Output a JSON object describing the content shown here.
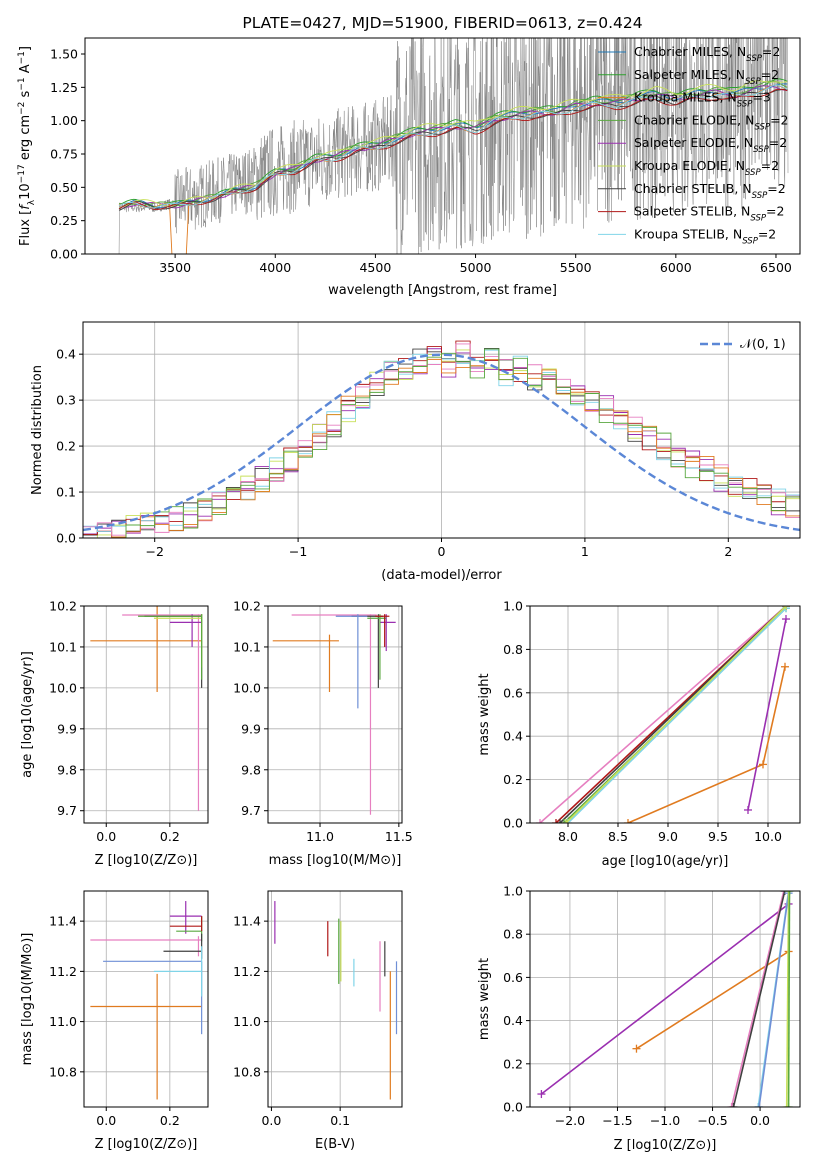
{
  "colors": {
    "chabrier_miles": "#1f77b4",
    "salpeter_miles": "#2ca02c",
    "kroupa_miles": "#e07b20",
    "chabrier_elodie": "#5aa840",
    "salpeter_elodie": "#9a2fb0",
    "kroupa_elodie": "#c8e05a",
    "chabrier_stelib": "#404040",
    "salpeter_stelib": "#b01818",
    "kroupa_stelib": "#80d4e8",
    "pink": "#e67fc0",
    "blue": "#6f8fd6",
    "normal": "#5b87d6",
    "spectrum": "#808080"
  },
  "chart_data": [
    {
      "id": "spectrum",
      "type": "line",
      "title": "PLATE=0427, MJD=51900, FIBERID=0613, z=0.424",
      "xlabel": "wavelength [Angstrom, rest frame]",
      "ylabel": "Flux [f_λ 10^-17 erg cm^-2 s^-1 A^-1]",
      "xlim": [
        3050,
        6620
      ],
      "ylim": [
        0,
        1.62
      ],
      "xticks": [
        "3500",
        "4000",
        "4500",
        "5000",
        "5500",
        "6000",
        "6500"
      ],
      "xtick_values": [
        3500,
        4000,
        4500,
        5000,
        5500,
        6000,
        6500
      ],
      "yticks": [
        "0.00",
        "0.25",
        "0.50",
        "0.75",
        "1.00",
        "1.25",
        "1.50"
      ],
      "ytick_values": [
        0,
        0.25,
        0.5,
        0.75,
        1.0,
        1.25,
        1.5
      ],
      "legend_position": "top-right",
      "data_line": {
        "name": "data",
        "x": [
          3220,
          3400,
          3600,
          3800,
          4000,
          4200,
          4400,
          4600,
          4800,
          5000,
          5200,
          5400,
          5600,
          5800,
          6000,
          6200,
          6400,
          6560
        ],
        "y": [
          0.35,
          0.35,
          0.42,
          0.52,
          0.62,
          0.7,
          0.78,
          0.85,
          0.92,
          0.95,
          1.0,
          1.05,
          1.1,
          1.15,
          1.2,
          1.22,
          1.25,
          1.27
        ]
      },
      "model_x": [
        3220,
        3300,
        3400,
        3500,
        3600,
        3700,
        3800,
        3900,
        4000,
        4100,
        4200,
        4300,
        4400,
        4500,
        4600,
        4700,
        4800,
        4900,
        5000,
        5100,
        5200,
        5300,
        5400,
        5500,
        5600,
        5700,
        5800,
        5900,
        6000,
        6100,
        6200,
        6300,
        6400,
        6500,
        6560
      ],
      "model_y": [
        0.35,
        0.38,
        0.36,
        0.36,
        0.39,
        0.42,
        0.47,
        0.5,
        0.6,
        0.63,
        0.7,
        0.72,
        0.78,
        0.8,
        0.85,
        0.9,
        0.92,
        0.95,
        0.93,
        1.0,
        1.03,
        1.05,
        1.05,
        1.1,
        1.12,
        1.12,
        1.15,
        1.18,
        1.15,
        1.18,
        1.2,
        1.18,
        1.22,
        1.25,
        1.23
      ],
      "series": [
        {
          "name": "Chabrier MILES",
          "nssp": "2",
          "color_key": "chabrier_miles",
          "scale": 1.02
        },
        {
          "name": "Salpeter MILES",
          "nssp": "2",
          "color_key": "salpeter_miles",
          "scale": 1.04
        },
        {
          "name": "Kroupa MILES",
          "nssp": "3",
          "color_key": "kroupa_miles",
          "scale": 1.0
        },
        {
          "name": "Chabrier ELODIE",
          "nssp": "2",
          "color_key": "chabrier_elodie",
          "scale": 1.03
        },
        {
          "name": "Salpeter ELODIE",
          "nssp": "2",
          "color_key": "salpeter_elodie",
          "scale": 1.01
        },
        {
          "name": "Kroupa ELODIE",
          "nssp": "2",
          "color_key": "kroupa_elodie",
          "scale": 1.05
        },
        {
          "name": "Chabrier STELIB",
          "nssp": "2",
          "color_key": "chabrier_stelib",
          "scale": 0.99
        },
        {
          "name": "Salpeter STELIB",
          "nssp": "2",
          "color_key": "salpeter_stelib",
          "scale": 0.98
        },
        {
          "name": "Kroupa STELIB",
          "nssp": "2",
          "color_key": "kroupa_stelib",
          "scale": 1.0
        }
      ]
    },
    {
      "id": "residuals",
      "type": "line",
      "xlabel": "(data-model)/error",
      "ylabel": "Normed distribution",
      "xlim": [
        -2.5,
        2.5
      ],
      "ylim": [
        0,
        0.47
      ],
      "xticks": [
        "−2",
        "−1",
        "0",
        "1",
        "2"
      ],
      "xtick_values": [
        -2,
        -1,
        0,
        1,
        2
      ],
      "yticks": [
        "0.0",
        "0.1",
        "0.2",
        "0.3",
        "0.4"
      ],
      "ytick_values": [
        0,
        0.1,
        0.2,
        0.3,
        0.4
      ],
      "legend_position": "top-right",
      "normal_label": "𝒩(0, 1)",
      "bins": [
        -2.5,
        -2.4,
        -2.3,
        -2.2,
        -2.1,
        -2.0,
        -1.9,
        -1.8,
        -1.7,
        -1.6,
        -1.5,
        -1.4,
        -1.3,
        -1.2,
        -1.1,
        -1.0,
        -0.9,
        -0.8,
        -0.7,
        -0.6,
        -0.5,
        -0.4,
        -0.3,
        -0.2,
        -0.1,
        0.0,
        0.1,
        0.2,
        0.3,
        0.4,
        0.5,
        0.6,
        0.7,
        0.8,
        0.9,
        1.0,
        1.1,
        1.2,
        1.3,
        1.4,
        1.5,
        1.6,
        1.7,
        1.8,
        1.9,
        2.0,
        2.1,
        2.2,
        2.3,
        2.4,
        2.5
      ],
      "hist_base": [
        0.01,
        0.012,
        0.015,
        0.02,
        0.025,
        0.03,
        0.04,
        0.05,
        0.06,
        0.075,
        0.09,
        0.11,
        0.13,
        0.15,
        0.17,
        0.2,
        0.22,
        0.25,
        0.28,
        0.31,
        0.34,
        0.36,
        0.37,
        0.385,
        0.39,
        0.38,
        0.4,
        0.37,
        0.39,
        0.36,
        0.37,
        0.35,
        0.34,
        0.32,
        0.31,
        0.3,
        0.28,
        0.26,
        0.24,
        0.22,
        0.2,
        0.18,
        0.16,
        0.15,
        0.13,
        0.11,
        0.1,
        0.09,
        0.08,
        0.07
      ]
    },
    {
      "id": "age_vs_z",
      "type": "scatter",
      "xlabel": "Z [log10(Z/Z⊙)]",
      "ylabel": "age [log10(age/yr)]",
      "xlim": [
        -0.07,
        0.32
      ],
      "ylim": [
        9.67,
        10.2
      ],
      "xticks": [
        "0.0",
        "0.2"
      ],
      "xtick_values": [
        0,
        0.2
      ],
      "yticks": [
        "9.7",
        "9.8",
        "9.9",
        "10.0",
        "10.1",
        "10.2"
      ],
      "ytick_values": [
        9.7,
        9.8,
        9.9,
        10.0,
        10.1,
        10.2
      ],
      "points": [
        {
          "x": 0.16,
          "y": 10.115,
          "xlo": -0.05,
          "xhi": 0.3,
          "ylo": 9.99,
          "yhi": 10.2,
          "color_key": "kroupa_miles"
        },
        {
          "x": 0.29,
          "y": 10.178,
          "xlo": 0.05,
          "xhi": 0.3,
          "ylo": 9.7,
          "yhi": 10.18,
          "color_key": "pink"
        },
        {
          "x": 0.27,
          "y": 10.16,
          "xlo": 0.2,
          "xhi": 0.3,
          "ylo": 10.1,
          "yhi": 10.18,
          "color_key": "salpeter_elodie"
        },
        {
          "x": 0.3,
          "y": 10.175,
          "xlo": 0.12,
          "xhi": 0.3,
          "ylo": 10.0,
          "yhi": 10.18,
          "color_key": "chabrier_stelib"
        },
        {
          "x": 0.3,
          "y": 10.17,
          "xlo": 0.15,
          "xhi": 0.3,
          "ylo": 10.05,
          "yhi": 10.18,
          "color_key": "kroupa_elodie"
        },
        {
          "x": 0.3,
          "y": 10.175,
          "xlo": 0.1,
          "xhi": 0.3,
          "ylo": 10.02,
          "yhi": 10.18,
          "color_key": "chabrier_elodie"
        }
      ]
    },
    {
      "id": "age_vs_mass",
      "type": "scatter",
      "xlabel": "mass [log10(M/M⊙)]",
      "ylabel": "",
      "xlim": [
        10.67,
        11.52
      ],
      "ylim": [
        9.67,
        10.2
      ],
      "xticks": [
        "11.0",
        "11.5"
      ],
      "xtick_values": [
        11.0,
        11.5
      ],
      "yticks": [
        "9.7",
        "9.8",
        "9.9",
        "10.0",
        "10.1",
        "10.2"
      ],
      "ytick_values": [
        9.7,
        9.8,
        9.9,
        10.0,
        10.1,
        10.2
      ],
      "points": [
        {
          "x": 11.06,
          "y": 10.115,
          "xlo": 10.7,
          "xhi": 11.12,
          "ylo": 9.99,
          "yhi": 10.13,
          "color_key": "kroupa_miles"
        },
        {
          "x": 11.32,
          "y": 10.178,
          "xlo": 10.82,
          "xhi": 11.36,
          "ylo": 9.69,
          "yhi": 10.18,
          "color_key": "pink"
        },
        {
          "x": 11.42,
          "y": 10.16,
          "xlo": 11.38,
          "xhi": 11.48,
          "ylo": 10.09,
          "yhi": 10.18,
          "color_key": "salpeter_elodie"
        },
        {
          "x": 11.37,
          "y": 10.175,
          "xlo": 11.2,
          "xhi": 11.4,
          "ylo": 10.0,
          "yhi": 10.18,
          "color_key": "chabrier_stelib"
        },
        {
          "x": 11.24,
          "y": 10.175,
          "xlo": 11.1,
          "xhi": 11.3,
          "ylo": 9.95,
          "yhi": 10.18,
          "color_key": "blue"
        },
        {
          "x": 11.38,
          "y": 10.17,
          "xlo": 11.3,
          "xhi": 11.42,
          "ylo": 10.02,
          "yhi": 10.18,
          "color_key": "chabrier_elodie"
        },
        {
          "x": 11.41,
          "y": 10.175,
          "xlo": 11.35,
          "xhi": 11.44,
          "ylo": 10.1,
          "yhi": 10.18,
          "color_key": "salpeter_stelib"
        }
      ]
    },
    {
      "id": "weight_vs_age",
      "type": "line",
      "xlabel": "age [log10(age/yr)]",
      "ylabel": "mass weight",
      "xlim": [
        7.62,
        10.32
      ],
      "ylim": [
        0,
        1.0
      ],
      "xticks": [
        "8.0",
        "8.5",
        "9.0",
        "9.5",
        "10.0"
      ],
      "xtick_values": [
        8.0,
        8.5,
        9.0,
        9.5,
        10.0
      ],
      "yticks": [
        "0.0",
        "0.2",
        "0.4",
        "0.6",
        "0.8",
        "1.0"
      ],
      "ytick_values": [
        0,
        0.2,
        0.4,
        0.6,
        0.8,
        1.0
      ],
      "series": [
        {
          "color_key": "pink",
          "x": [
            7.72,
            10.18
          ],
          "y": [
            0.0,
            1.0
          ]
        },
        {
          "color_key": "salpeter_stelib",
          "x": [
            7.88,
            10.18
          ],
          "y": [
            0.0,
            1.0
          ]
        },
        {
          "color_key": "chabrier_stelib",
          "x": [
            7.92,
            10.18
          ],
          "y": [
            0.0,
            1.0
          ]
        },
        {
          "color_key": "chabrier_elodie",
          "x": [
            7.96,
            10.18
          ],
          "y": [
            0.0,
            0.99
          ]
        },
        {
          "color_key": "kroupa_stelib",
          "x": [
            8.0,
            10.18
          ],
          "y": [
            0.0,
            0.99
          ]
        },
        {
          "color_key": "kroupa_elodie",
          "x": [
            7.98,
            10.18
          ],
          "y": [
            0.0,
            1.0
          ]
        },
        {
          "color_key": "kroupa_miles",
          "x": [
            8.6,
            9.95,
            10.17
          ],
          "y": [
            0.0,
            0.27,
            0.72
          ]
        },
        {
          "color_key": "salpeter_elodie",
          "x": [
            9.8,
            10.18
          ],
          "y": [
            0.06,
            0.94
          ]
        }
      ]
    },
    {
      "id": "mass_vs_z",
      "type": "scatter",
      "xlabel": "Z [log10(Z/Z⊙)]",
      "ylabel": "mass [log10(M/M⊙)]",
      "xlim": [
        -0.07,
        0.32
      ],
      "ylim": [
        10.66,
        11.52
      ],
      "xticks": [
        "0.0",
        "0.2"
      ],
      "xtick_values": [
        0,
        0.2
      ],
      "yticks": [
        "10.8",
        "11.0",
        "11.2",
        "11.4"
      ],
      "ytick_values": [
        10.8,
        11.0,
        11.2,
        11.4
      ],
      "points": [
        {
          "x": 0.16,
          "y": 11.06,
          "xlo": -0.05,
          "xhi": 0.3,
          "ylo": 10.69,
          "yhi": 11.19,
          "color_key": "kroupa_miles"
        },
        {
          "x": 0.29,
          "y": 11.325,
          "xlo": -0.05,
          "xhi": 0.3,
          "ylo": 11.26,
          "yhi": 11.34,
          "color_key": "pink"
        },
        {
          "x": 0.25,
          "y": 11.42,
          "xlo": 0.2,
          "xhi": 0.3,
          "ylo": 11.35,
          "yhi": 11.48,
          "color_key": "salpeter_elodie"
        },
        {
          "x": 0.3,
          "y": 11.24,
          "xlo": -0.01,
          "xhi": 0.3,
          "ylo": 10.95,
          "yhi": 11.24,
          "color_key": "blue"
        },
        {
          "x": 0.3,
          "y": 11.36,
          "xlo": 0.22,
          "xhi": 0.3,
          "ylo": 11.32,
          "yhi": 11.42,
          "color_key": "chabrier_elodie"
        },
        {
          "x": 0.3,
          "y": 11.28,
          "xlo": 0.18,
          "xhi": 0.3,
          "ylo": 11.25,
          "yhi": 11.35,
          "color_key": "chabrier_stelib"
        },
        {
          "x": 0.3,
          "y": 11.38,
          "xlo": 0.2,
          "xhi": 0.3,
          "ylo": 11.36,
          "yhi": 11.42,
          "color_key": "salpeter_stelib"
        },
        {
          "x": 0.3,
          "y": 11.2,
          "xlo": 0.15,
          "xhi": 0.3,
          "ylo": 11.1,
          "yhi": 11.3,
          "color_key": "kroupa_stelib"
        }
      ]
    },
    {
      "id": "mass_vs_ebv",
      "type": "scatter",
      "xlabel": "E(B-V)",
      "ylabel": "",
      "xlim": [
        -0.005,
        0.19
      ],
      "ylim": [
        10.66,
        11.52
      ],
      "xticks": [
        "0.0",
        "0.1"
      ],
      "xtick_values": [
        0.0,
        0.1
      ],
      "yticks": [
        "10.8",
        "11.0",
        "11.2",
        "11.4"
      ],
      "ytick_values": [
        10.8,
        11.0,
        11.2,
        11.4
      ],
      "points": [
        {
          "x": 0.005,
          "y": 11.42,
          "ylo": 11.31,
          "yhi": 11.48,
          "color_key": "salpeter_elodie"
        },
        {
          "x": 0.082,
          "y": 11.33,
          "ylo": 11.26,
          "yhi": 11.4,
          "color_key": "salpeter_stelib"
        },
        {
          "x": 0.098,
          "y": 11.33,
          "ylo": 11.15,
          "yhi": 11.41,
          "color_key": "chabrier_elodie"
        },
        {
          "x": 0.101,
          "y": 11.3,
          "ylo": 11.16,
          "yhi": 11.4,
          "color_key": "kroupa_elodie"
        },
        {
          "x": 0.12,
          "y": 11.2,
          "ylo": 11.14,
          "yhi": 11.25,
          "color_key": "kroupa_stelib"
        },
        {
          "x": 0.158,
          "y": 11.2,
          "ylo": 11.04,
          "yhi": 11.32,
          "color_key": "pink"
        },
        {
          "x": 0.165,
          "y": 11.26,
          "ylo": 11.18,
          "yhi": 11.32,
          "color_key": "chabrier_stelib"
        },
        {
          "x": 0.173,
          "y": 11.06,
          "ylo": 10.69,
          "yhi": 11.2,
          "color_key": "kroupa_miles"
        },
        {
          "x": 0.182,
          "y": 11.1,
          "ylo": 10.95,
          "yhi": 11.24,
          "color_key": "blue"
        }
      ]
    },
    {
      "id": "weight_vs_z",
      "type": "line",
      "xlabel": "Z [log10(Z/Z⊙)]",
      "ylabel": "mass weight",
      "xlim": [
        -2.42,
        0.42
      ],
      "ylim": [
        0,
        1.0
      ],
      "xticks": [
        "−2.0",
        "−1.5",
        "−1.0",
        "−0.5",
        "0.0"
      ],
      "xtick_values": [
        -2.0,
        -1.5,
        -1.0,
        -0.5,
        0.0
      ],
      "yticks": [
        "0.0",
        "0.2",
        "0.4",
        "0.6",
        "0.8",
        "1.0"
      ],
      "ytick_values": [
        0,
        0.2,
        0.4,
        0.6,
        0.8,
        1.0
      ],
      "series": [
        {
          "color_key": "salpeter_elodie",
          "x": [
            -2.3,
            0.3
          ],
          "y": [
            0.06,
            0.94
          ]
        },
        {
          "color_key": "kroupa_miles",
          "x": [
            -1.3,
            0.3
          ],
          "y": [
            0.27,
            0.72
          ]
        },
        {
          "color_key": "pink",
          "x": [
            -0.3,
            0.25
          ],
          "y": [
            0.0,
            1.0
          ]
        },
        {
          "color_key": "chabrier_stelib",
          "x": [
            -0.28,
            0.26
          ],
          "y": [
            0.0,
            1.0
          ]
        },
        {
          "color_key": "kroupa_stelib",
          "x": [
            -0.02,
            0.3
          ],
          "y": [
            0.0,
            1.0
          ]
        },
        {
          "color_key": "blue",
          "x": [
            -0.01,
            0.3
          ],
          "y": [
            0.0,
            0.99
          ]
        },
        {
          "color_key": "kroupa_elodie",
          "x": [
            0.28,
            0.3
          ],
          "y": [
            0.0,
            1.0
          ]
        },
        {
          "color_key": "chabrier_elodie",
          "x": [
            0.3,
            0.31
          ],
          "y": [
            0.0,
            1.0
          ]
        }
      ]
    }
  ]
}
